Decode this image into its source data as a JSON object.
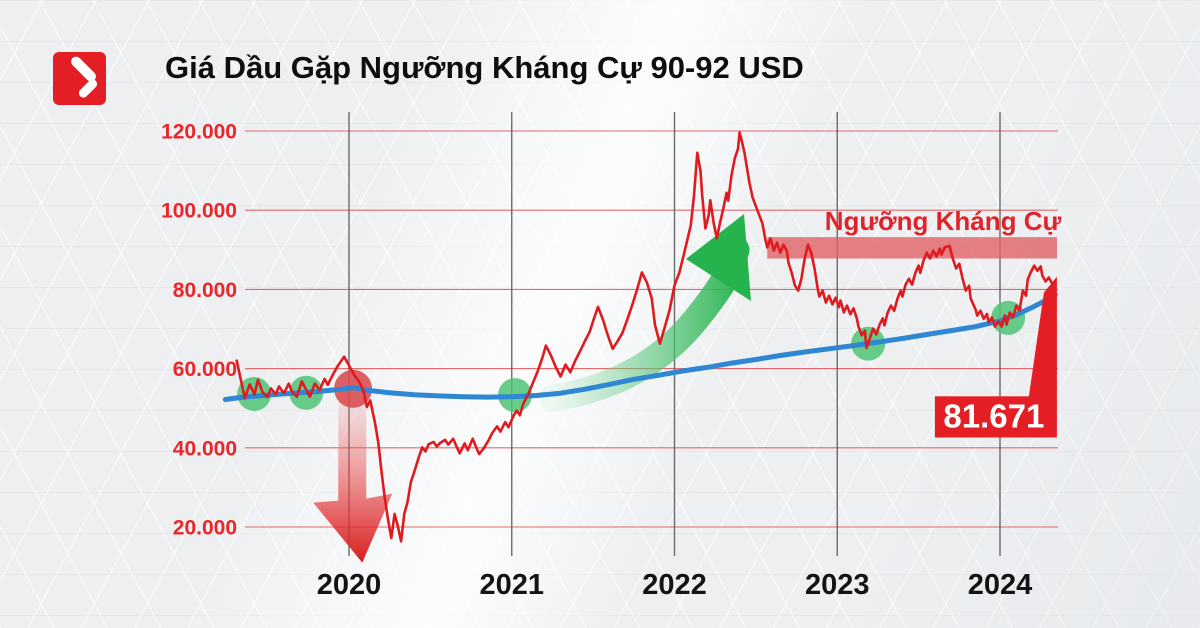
{
  "header": {
    "title": "Giá Dầu Gặp Ngưỡng Kháng Cự 90-92 USD"
  },
  "brand": {
    "logo_color": "#e31e24"
  },
  "chart_data": {
    "type": "line",
    "title": "Giá Dầu Gặp Ngưỡng Kháng Cự 90-92 USD",
    "unit": "USD (scale .000)",
    "grid": "on",
    "x_ticks": [
      2020,
      2021,
      2022,
      2023,
      2024
    ],
    "y_ticks": [
      {
        "label": "120.000",
        "value": 120
      },
      {
        "label": "100.000",
        "value": 100
      },
      {
        "label": "80.000",
        "value": 80
      },
      {
        "label": "60.000",
        "value": 60
      },
      {
        "label": "40.000",
        "value": 40
      },
      {
        "label": "20.000",
        "value": 20
      }
    ],
    "x_range_years": [
      2019.24,
      2024.36
    ],
    "y_range": [
      11,
      123
    ],
    "series": [
      {
        "name": "oil_price",
        "color": "#df1b20",
        "width": 2.6,
        "points": [
          [
            2019.31,
            62.0
          ],
          [
            2019.34,
            56.3
          ],
          [
            2019.36,
            52.5
          ],
          [
            2019.39,
            56.0
          ],
          [
            2019.42,
            53.5
          ],
          [
            2019.44,
            57.2
          ],
          [
            2019.47,
            54.0
          ],
          [
            2019.5,
            52.8
          ],
          [
            2019.52,
            55.0
          ],
          [
            2019.55,
            53.5
          ],
          [
            2019.57,
            55.5
          ],
          [
            2019.6,
            53.8
          ],
          [
            2019.63,
            56.2
          ],
          [
            2019.65,
            54.2
          ],
          [
            2019.68,
            52.9
          ],
          [
            2019.71,
            56.8
          ],
          [
            2019.74,
            54.4
          ],
          [
            2019.76,
            52.9
          ],
          [
            2019.79,
            56.2
          ],
          [
            2019.82,
            54.6
          ],
          [
            2019.85,
            57.4
          ],
          [
            2019.87,
            55.9
          ],
          [
            2019.9,
            58.4
          ],
          [
            2019.93,
            60.6
          ],
          [
            2019.97,
            63.0
          ],
          [
            2020.0,
            60.8
          ],
          [
            2020.03,
            58.5
          ],
          [
            2020.06,
            56.8
          ],
          [
            2020.09,
            54.3
          ],
          [
            2020.11,
            50.3
          ],
          [
            2020.13,
            52.0
          ],
          [
            2020.16,
            46.3
          ],
          [
            2020.18,
            41.3
          ],
          [
            2020.2,
            33.8
          ],
          [
            2020.22,
            27.3
          ],
          [
            2020.24,
            21.8
          ],
          [
            2020.26,
            17.2
          ],
          [
            2020.28,
            23.3
          ],
          [
            2020.3,
            20.2
          ],
          [
            2020.32,
            16.4
          ],
          [
            2020.34,
            23.3
          ],
          [
            2020.36,
            26.4
          ],
          [
            2020.38,
            31.3
          ],
          [
            2020.4,
            33.8
          ],
          [
            2020.43,
            37.8
          ],
          [
            2020.45,
            40.1
          ],
          [
            2020.47,
            39.1
          ],
          [
            2020.49,
            40.9
          ],
          [
            2020.52,
            41.5
          ],
          [
            2020.54,
            40.3
          ],
          [
            2020.56,
            41.2
          ],
          [
            2020.59,
            42.0
          ],
          [
            2020.61,
            40.8
          ],
          [
            2020.64,
            42.3
          ],
          [
            2020.66,
            40.4
          ],
          [
            2020.68,
            38.6
          ],
          [
            2020.71,
            41.1
          ],
          [
            2020.73,
            39.4
          ],
          [
            2020.76,
            42.3
          ],
          [
            2020.78,
            40.3
          ],
          [
            2020.8,
            38.4
          ],
          [
            2020.83,
            40.0
          ],
          [
            2020.86,
            42.1
          ],
          [
            2020.88,
            43.7
          ],
          [
            2020.91,
            45.4
          ],
          [
            2020.93,
            44.1
          ],
          [
            2020.96,
            46.5
          ],
          [
            2020.98,
            45.2
          ],
          [
            2021.01,
            48.0
          ],
          [
            2021.03,
            49.4
          ],
          [
            2021.05,
            48.2
          ],
          [
            2021.07,
            51.0
          ],
          [
            2021.1,
            53.4
          ],
          [
            2021.13,
            56.4
          ],
          [
            2021.16,
            59.4
          ],
          [
            2021.19,
            63.0
          ],
          [
            2021.21,
            65.8
          ],
          [
            2021.24,
            63.4
          ],
          [
            2021.27,
            60.4
          ],
          [
            2021.3,
            58.0
          ],
          [
            2021.33,
            61.0
          ],
          [
            2021.36,
            59.1
          ],
          [
            2021.39,
            62.0
          ],
          [
            2021.42,
            64.4
          ],
          [
            2021.45,
            67.0
          ],
          [
            2021.48,
            69.4
          ],
          [
            2021.5,
            72.0
          ],
          [
            2021.53,
            75.6
          ],
          [
            2021.56,
            72.4
          ],
          [
            2021.59,
            68.4
          ],
          [
            2021.62,
            65.0
          ],
          [
            2021.65,
            66.9
          ],
          [
            2021.68,
            69.0
          ],
          [
            2021.71,
            72.4
          ],
          [
            2021.74,
            76.0
          ],
          [
            2021.77,
            80.0
          ],
          [
            2021.8,
            84.3
          ],
          [
            2021.83,
            81.8
          ],
          [
            2021.86,
            77.8
          ],
          [
            2021.88,
            71.0
          ],
          [
            2021.91,
            66.3
          ],
          [
            2021.94,
            70.4
          ],
          [
            2021.97,
            74.8
          ],
          [
            2022.0,
            81.0
          ],
          [
            2022.03,
            84.3
          ],
          [
            2022.06,
            89.3
          ],
          [
            2022.1,
            96.2
          ],
          [
            2022.12,
            103.7
          ],
          [
            2022.14,
            114.5
          ],
          [
            2022.16,
            109.9
          ],
          [
            2022.17,
            103.7
          ],
          [
            2022.19,
            95.4
          ],
          [
            2022.21,
            98.7
          ],
          [
            2022.22,
            102.5
          ],
          [
            2022.24,
            96.9
          ],
          [
            2022.26,
            92.9
          ],
          [
            2022.28,
            96.9
          ],
          [
            2022.3,
            100.4
          ],
          [
            2022.32,
            104.4
          ],
          [
            2022.33,
            102.4
          ],
          [
            2022.35,
            108.8
          ],
          [
            2022.37,
            113.0
          ],
          [
            2022.39,
            115.5
          ],
          [
            2022.4,
            119.6
          ],
          [
            2022.41,
            118.1
          ],
          [
            2022.43,
            114.5
          ],
          [
            2022.46,
            107.0
          ],
          [
            2022.48,
            103.2
          ],
          [
            2022.51,
            99.9
          ],
          [
            2022.54,
            96.7
          ],
          [
            2022.56,
            92.3
          ],
          [
            2022.57,
            90.6
          ],
          [
            2022.59,
            92.9
          ],
          [
            2022.61,
            89.8
          ],
          [
            2022.63,
            91.8
          ],
          [
            2022.65,
            89.3
          ],
          [
            2022.67,
            91.3
          ],
          [
            2022.69,
            89.8
          ],
          [
            2022.7,
            86.8
          ],
          [
            2022.72,
            84.2
          ],
          [
            2022.74,
            81.0
          ],
          [
            2022.76,
            79.7
          ],
          [
            2022.78,
            82.7
          ],
          [
            2022.8,
            87.8
          ],
          [
            2022.82,
            91.3
          ],
          [
            2022.84,
            89.3
          ],
          [
            2022.86,
            85.3
          ],
          [
            2022.88,
            80.2
          ],
          [
            2022.89,
            78.2
          ],
          [
            2022.91,
            79.7
          ],
          [
            2022.93,
            76.7
          ],
          [
            2022.95,
            78.4
          ],
          [
            2022.97,
            76.2
          ],
          [
            2022.99,
            77.9
          ],
          [
            2023.01,
            75.5
          ],
          [
            2023.02,
            77.2
          ],
          [
            2023.04,
            74.2
          ],
          [
            2023.06,
            75.9
          ],
          [
            2023.08,
            73.7
          ],
          [
            2023.1,
            75.2
          ],
          [
            2023.12,
            72.7
          ],
          [
            2023.13,
            70.7
          ],
          [
            2023.15,
            68.4
          ],
          [
            2023.17,
            69.6
          ],
          [
            2023.18,
            65.2
          ],
          [
            2023.2,
            67.6
          ],
          [
            2023.22,
            70.1
          ],
          [
            2023.24,
            68.6
          ],
          [
            2023.26,
            71.1
          ],
          [
            2023.28,
            72.7
          ],
          [
            2023.29,
            70.9
          ],
          [
            2023.31,
            74.2
          ],
          [
            2023.33,
            75.9
          ],
          [
            2023.35,
            74.6
          ],
          [
            2023.37,
            77.7
          ],
          [
            2023.39,
            79.7
          ],
          [
            2023.4,
            78.2
          ],
          [
            2023.42,
            81.2
          ],
          [
            2023.44,
            82.7
          ],
          [
            2023.46,
            81.2
          ],
          [
            2023.48,
            84.2
          ],
          [
            2023.5,
            86.0
          ],
          [
            2023.51,
            84.2
          ],
          [
            2023.53,
            87.3
          ],
          [
            2023.55,
            89.3
          ],
          [
            2023.57,
            87.8
          ],
          [
            2023.59,
            89.8
          ],
          [
            2023.61,
            88.3
          ],
          [
            2023.63,
            90.3
          ],
          [
            2023.64,
            88.8
          ],
          [
            2023.66,
            90.6
          ],
          [
            2023.69,
            91.0
          ],
          [
            2023.71,
            87.8
          ],
          [
            2023.73,
            85.3
          ],
          [
            2023.75,
            86.5
          ],
          [
            2023.77,
            82.7
          ],
          [
            2023.79,
            79.7
          ],
          [
            2023.81,
            80.9
          ],
          [
            2023.82,
            77.7
          ],
          [
            2023.85,
            74.9
          ],
          [
            2023.86,
            73.4
          ],
          [
            2023.88,
            74.6
          ],
          [
            2023.9,
            72.6
          ],
          [
            2023.92,
            73.8
          ],
          [
            2023.93,
            71.6
          ],
          [
            2023.95,
            72.9
          ],
          [
            2023.97,
            70.6
          ],
          [
            2023.99,
            71.9
          ],
          [
            2024.01,
            70.6
          ],
          [
            2024.03,
            73.4
          ],
          [
            2024.04,
            71.1
          ],
          [
            2024.06,
            74.2
          ],
          [
            2024.08,
            72.9
          ],
          [
            2024.1,
            75.9
          ],
          [
            2024.12,
            74.7
          ],
          [
            2024.14,
            79.7
          ],
          [
            2024.16,
            78.4
          ],
          [
            2024.17,
            82.5
          ],
          [
            2024.19,
            84.4
          ],
          [
            2024.21,
            86.0
          ],
          [
            2024.23,
            84.7
          ],
          [
            2024.25,
            85.8
          ],
          [
            2024.26,
            83.5
          ],
          [
            2024.28,
            82.0
          ],
          [
            2024.3,
            83.0
          ],
          [
            2024.32,
            81.5
          ],
          [
            2024.34,
            81.7
          ]
        ]
      },
      {
        "name": "moving_average",
        "color": "#2f86d2",
        "width": 5,
        "points": [
          [
            2019.24,
            52.2
          ],
          [
            2019.35,
            52.8
          ],
          [
            2019.5,
            53.3
          ],
          [
            2019.65,
            53.8
          ],
          [
            2019.8,
            54.2
          ],
          [
            2019.95,
            54.8
          ],
          [
            2020.02,
            55.2
          ],
          [
            2020.1,
            54.6
          ],
          [
            2020.25,
            53.9
          ],
          [
            2020.4,
            53.4
          ],
          [
            2020.55,
            53.1
          ],
          [
            2020.7,
            52.9
          ],
          [
            2020.85,
            52.8
          ],
          [
            2021.0,
            52.9
          ],
          [
            2021.15,
            53.2
          ],
          [
            2021.3,
            53.8
          ],
          [
            2021.45,
            54.8
          ],
          [
            2021.6,
            56.0
          ],
          [
            2021.75,
            57.3
          ],
          [
            2021.9,
            58.3
          ],
          [
            2022.05,
            59.4
          ],
          [
            2022.2,
            60.3
          ],
          [
            2022.35,
            61.4
          ],
          [
            2022.5,
            62.3
          ],
          [
            2022.65,
            63.3
          ],
          [
            2022.8,
            64.2
          ],
          [
            2022.95,
            65.0
          ],
          [
            2023.1,
            65.8
          ],
          [
            2023.25,
            66.7
          ],
          [
            2023.4,
            67.6
          ],
          [
            2023.55,
            68.6
          ],
          [
            2023.7,
            69.6
          ],
          [
            2023.85,
            70.6
          ],
          [
            2024.0,
            72.0
          ],
          [
            2024.1,
            73.6
          ],
          [
            2024.2,
            75.5
          ],
          [
            2024.3,
            77.6
          ],
          [
            2024.34,
            78.6
          ]
        ]
      }
    ],
    "markers": {
      "support_touches": {
        "color": "#4fc377",
        "radius": 17,
        "points": [
          [
            2019.417,
            53.6
          ],
          [
            2019.737,
            53.9
          ],
          [
            2021.02,
            53.3
          ],
          [
            2023.19,
            66.3
          ],
          [
            2024.05,
            72.8
          ]
        ]
      },
      "breakdown_point": {
        "color": "#da4a4e",
        "radius": 19,
        "points": [
          [
            2020.025,
            54.9
          ]
        ]
      }
    },
    "annotations": {
      "resistance_zone": {
        "label": "Ngưỡng Kháng Cự",
        "t_start": 2022.57,
        "t_end": 2024.35,
        "v_top": 93.2,
        "v_bottom": 87.8,
        "band_color": "#e06167",
        "label_color": "#e0232b",
        "label_t": 2023.65,
        "label_v": 95.0
      },
      "price_callout": {
        "text": "81.671",
        "box_color": "#e41e25",
        "text_color": "#ffffff",
        "t_start": 2023.6,
        "t_end": 2024.325,
        "v_top": 53.0,
        "v_bottom": 42.6
      },
      "crash_arrow": {
        "color": "#d81c1c",
        "t": 2020.02,
        "v_from": 54.0,
        "v_to": 11.0
      },
      "rally_arrow": {
        "color": "#26b24c",
        "t_from": 2021.25,
        "v_from": 52.5,
        "t_to": 2022.43,
        "v_to": 98.0
      }
    }
  }
}
